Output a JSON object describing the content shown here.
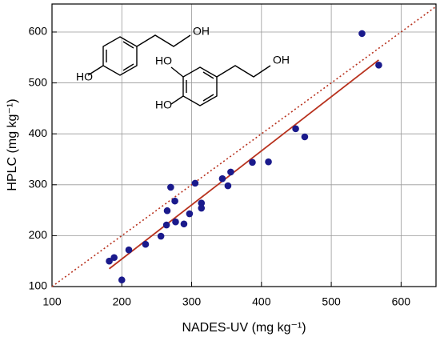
{
  "chart_data": {
    "type": "scatter",
    "x_label": "NADES-UV (mg kg⁻¹)",
    "y_label": "HPLC (mg kg⁻¹)",
    "xlim": [
      100,
      650
    ],
    "xticks": [
      100,
      200,
      300,
      400,
      500,
      600
    ],
    "ylim": [
      100,
      655
    ],
    "yticks": [
      100,
      200,
      300,
      400,
      500,
      600
    ],
    "grid": true,
    "points": {
      "color": "#1a1a8c",
      "x": [
        182,
        189,
        200,
        210,
        234,
        256,
        264,
        265,
        270,
        276,
        277,
        289,
        297,
        305,
        314,
        314,
        344,
        352,
        356,
        387,
        410,
        449,
        462,
        544,
        568
      ],
      "values": [
        150,
        157,
        113,
        172,
        183,
        199,
        221,
        249,
        295,
        268,
        227,
        223,
        243,
        303,
        264,
        254,
        312,
        298,
        325,
        344,
        345,
        410,
        394,
        597,
        535
      ]
    },
    "lines": [
      {
        "x": [
          182,
          568
        ],
        "values": [
          135,
          545
        ],
        "color": "#b8321e",
        "style": "solid"
      },
      {
        "x": [
          100,
          650
        ],
        "values": [
          100,
          650
        ],
        "color": "#b8321e",
        "style": "dotted"
      }
    ],
    "molecules": [
      {
        "labels": [
          "HO",
          "OH"
        ]
      },
      {
        "labels": [
          "HO",
          "HO",
          "OH"
        ]
      }
    ]
  }
}
